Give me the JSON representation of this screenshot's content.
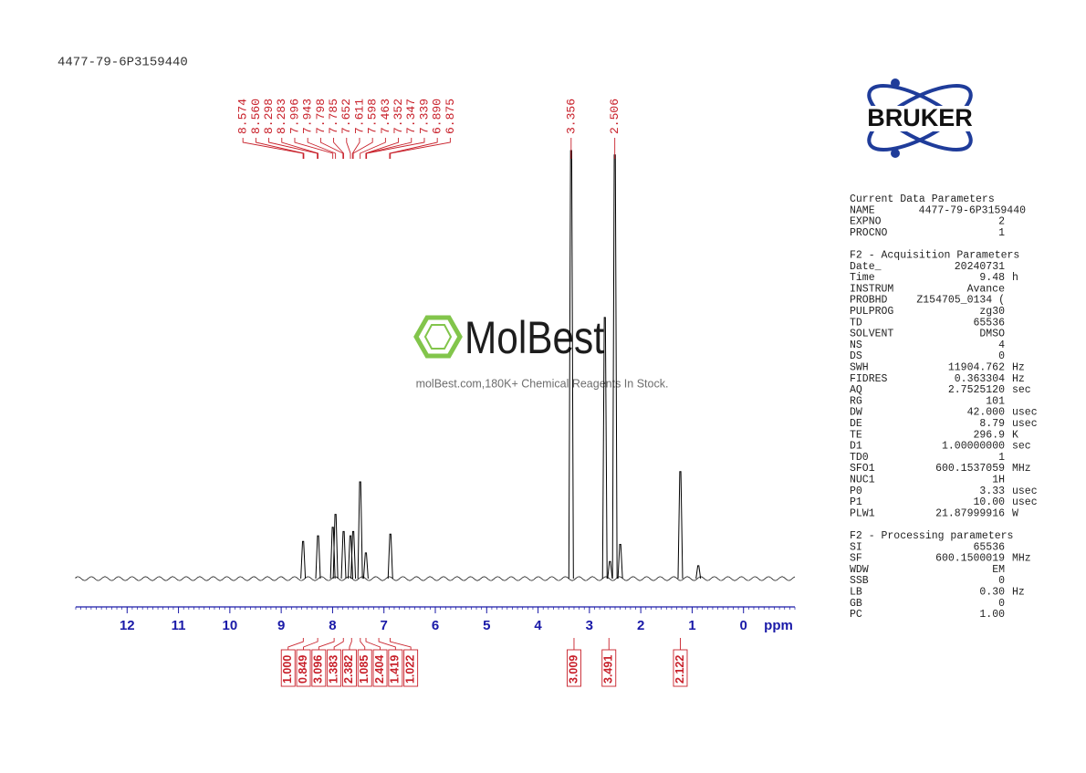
{
  "header": {
    "title": "4477-79-6P3159440"
  },
  "watermark": {
    "name": "MolBest",
    "tagline": "molBest.com,180K+ Chemical Reagents In Stock."
  },
  "logo": {
    "text": "BRUKER"
  },
  "chart_data": {
    "type": "nmr",
    "x_label": "ppm",
    "xlim": [
      13,
      -1
    ],
    "xticks": [
      12,
      11,
      10,
      9,
      8,
      7,
      6,
      5,
      4,
      3,
      2,
      1,
      0
    ],
    "ylim": [
      0,
      100
    ],
    "peaks": [
      8.574,
      8.56,
      8.298,
      8.283,
      7.996,
      7.943,
      7.798,
      7.785,
      7.652,
      7.611,
      7.598,
      7.463,
      7.352,
      7.347,
      7.339,
      6.89,
      6.875,
      3.356,
      2.506
    ],
    "peak_labels": [
      "8.574",
      "8.560",
      "8.298",
      "8.283",
      "7.996",
      "7.943",
      "7.798",
      "7.785",
      "7.652",
      "7.611",
      "7.598",
      "7.463",
      "7.352",
      "7.347",
      "7.339",
      "6.890",
      "6.875",
      "3.356",
      "2.506"
    ],
    "signals": {
      "x": [
        8.574,
        8.283,
        7.996,
        7.943,
        7.785,
        7.652,
        7.598,
        7.463,
        7.352,
        6.875,
        3.356,
        2.7,
        2.506,
        2.6,
        2.4,
        1.23,
        0.88
      ],
      "y": [
        8.7,
        10,
        12,
        15,
        11,
        10,
        11,
        22.6,
        6,
        10.4,
        100,
        61,
        99,
        4,
        8,
        25,
        3
      ]
    },
    "integrals": {
      "x": [
        8.57,
        8.29,
        7.97,
        7.79,
        7.63,
        7.46,
        7.35,
        7.1,
        6.88,
        3.3,
        2.62,
        1.23
      ],
      "values": [
        1.0,
        0.849,
        3.096,
        1.383,
        2.382,
        1.085,
        2.404,
        1.419,
        1.022,
        3.009,
        3.491,
        2.122
      ],
      "value_labels": [
        "1.000",
        "0.849",
        "3.096",
        "1.383",
        "2.382",
        "1.085",
        "2.404",
        "1.419",
        "1.022",
        "3.009",
        "3.491",
        "2.122"
      ]
    },
    "color": "#000000",
    "label_color": "#c8202a",
    "axis_color": "#1a1aa8"
  },
  "parameters": [
    {
      "title": "Current Data Parameters",
      "rows": [
        [
          "NAME",
          "4477-79-6P3159440"
        ],
        [
          "EXPNO",
          "2"
        ],
        [
          "PROCNO",
          "1"
        ]
      ]
    },
    {
      "title": "F2 - Acquisition Parameters",
      "rows": [
        [
          "Date_",
          "20240731"
        ],
        [
          "Time",
          "9.48",
          "h"
        ],
        [
          "INSTRUM",
          "Avance"
        ],
        [
          "PROBHD",
          "Z154705_0134 ("
        ],
        [
          "PULPROG",
          "zg30"
        ],
        [
          "TD",
          "65536"
        ],
        [
          "SOLVENT",
          "DMSO"
        ],
        [
          "NS",
          "4"
        ],
        [
          "DS",
          "0"
        ],
        [
          "SWH",
          "11904.762",
          "Hz"
        ],
        [
          "FIDRES",
          "0.363304",
          "Hz"
        ],
        [
          "AQ",
          "2.7525120",
          "sec"
        ],
        [
          "RG",
          "101"
        ],
        [
          "DW",
          "42.000",
          "usec"
        ],
        [
          "DE",
          "8.79",
          "usec"
        ],
        [
          "TE",
          "296.9",
          "K"
        ],
        [
          "D1",
          "1.00000000",
          "sec"
        ],
        [
          "TD0",
          "1"
        ],
        [
          "SFO1",
          "600.1537059",
          "MHz"
        ],
        [
          "NUC1",
          "1H"
        ],
        [
          "P0",
          "3.33",
          "usec"
        ],
        [
          "P1",
          "10.00",
          "usec"
        ],
        [
          "PLW1",
          "21.87999916",
          "W"
        ]
      ]
    },
    {
      "title": "F2 - Processing parameters",
      "rows": [
        [
          "SI",
          "65536"
        ],
        [
          "SF",
          "600.1500019",
          "MHz"
        ],
        [
          "WDW",
          "EM"
        ],
        [
          "SSB",
          "0"
        ],
        [
          "LB",
          "0.30",
          "Hz"
        ],
        [
          "GB",
          "0"
        ],
        [
          "PC",
          "1.00"
        ]
      ]
    }
  ]
}
